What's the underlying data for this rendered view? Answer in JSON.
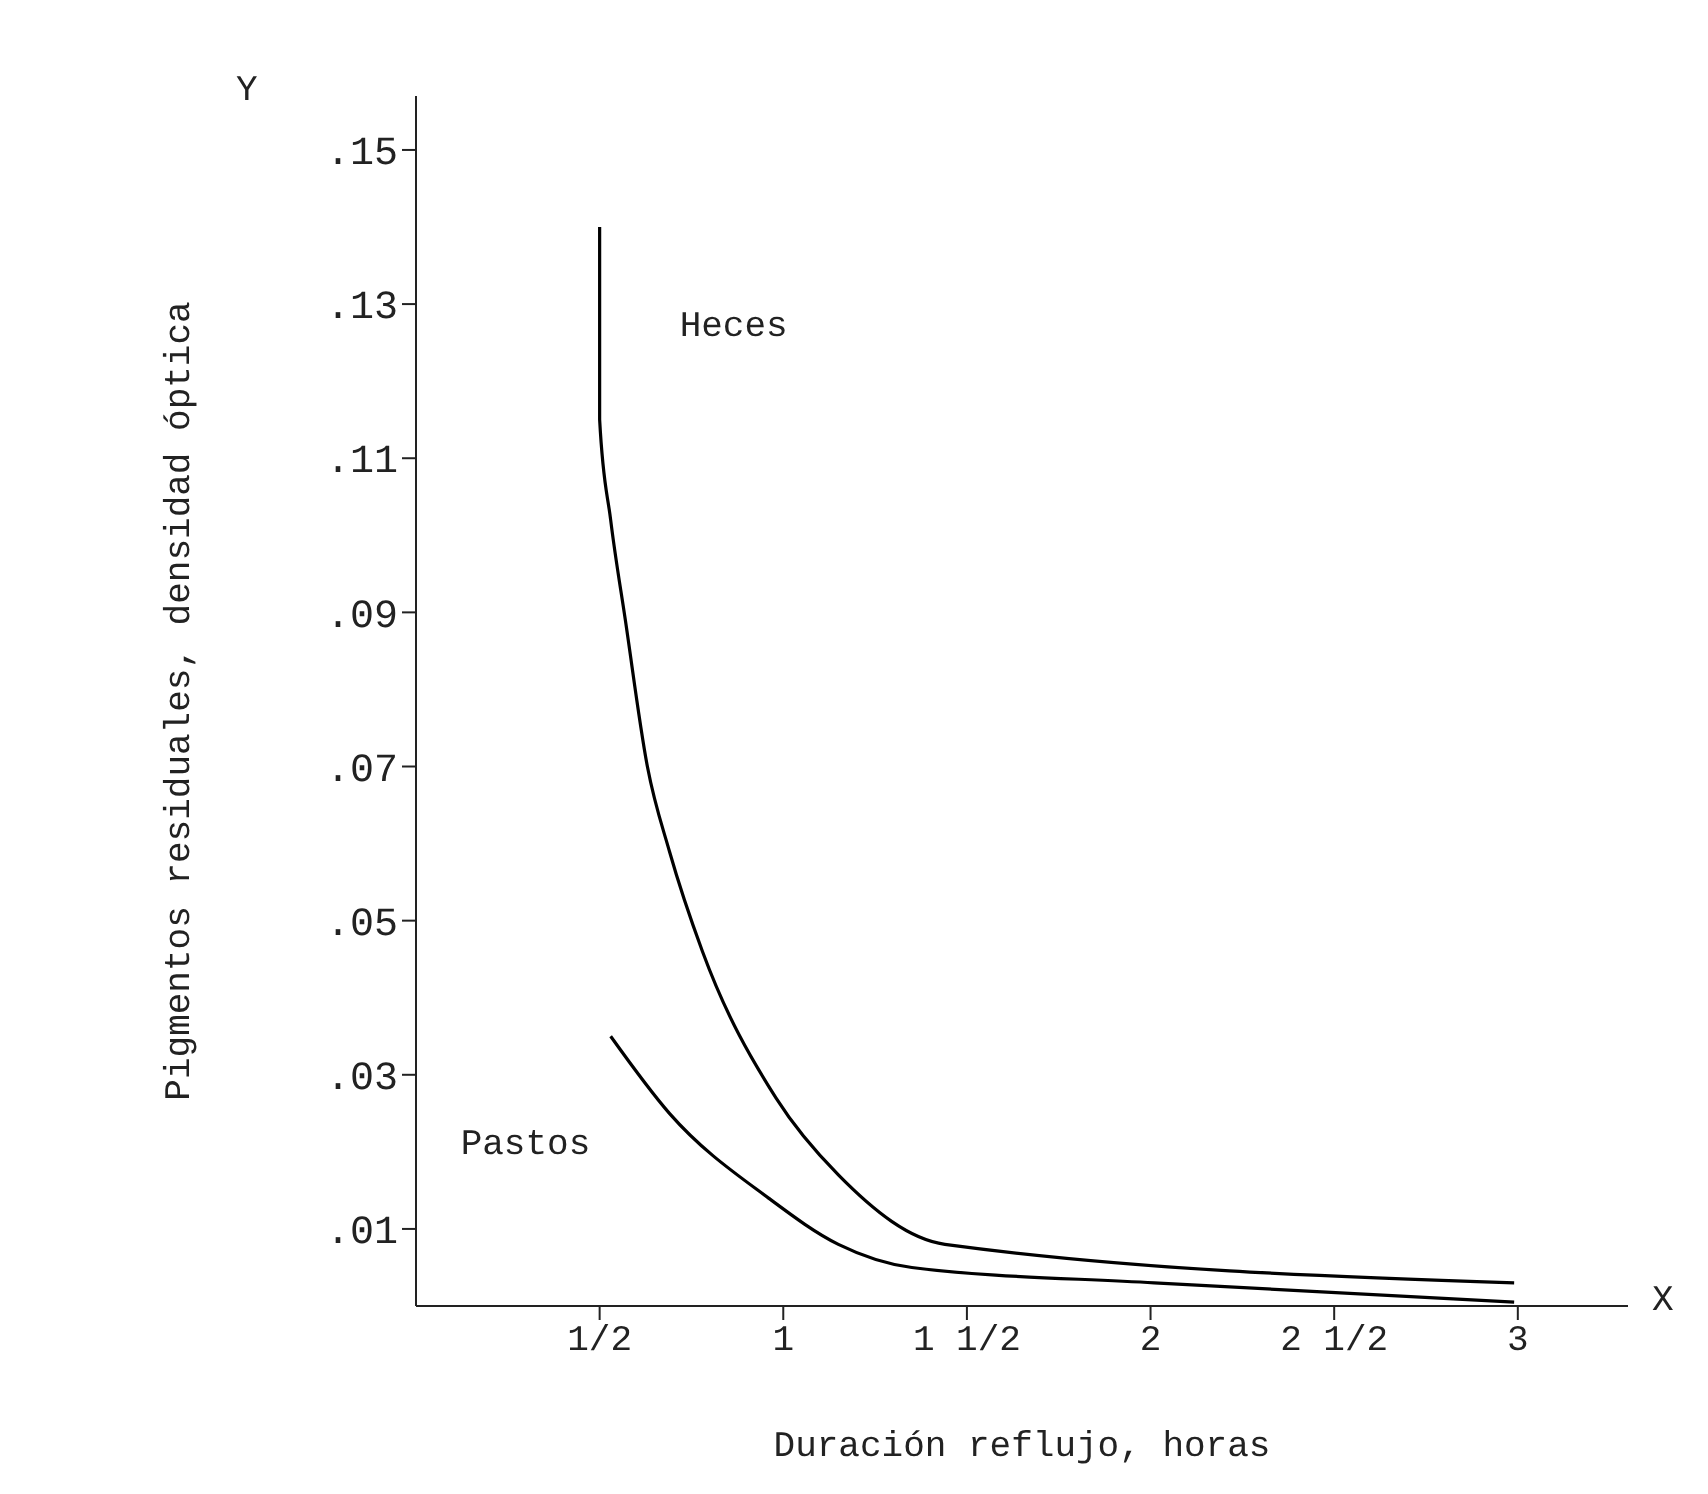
{
  "chart_data": {
    "type": "line",
    "xlabel": "Duración reflujo, horas",
    "ylabel": "Pigmentos residuales, densidad óptica",
    "annotations": [
      "Y",
      "X"
    ],
    "xlim": [
      0,
      3.3
    ],
    "xticks": [
      {
        "value": 0.5,
        "label": "1/2"
      },
      {
        "value": 1,
        "label": "1"
      },
      {
        "value": 1.5,
        "label": "1 1/2"
      },
      {
        "value": 2,
        "label": "2"
      },
      {
        "value": 2.5,
        "label": "2 1/2"
      },
      {
        "value": 3,
        "label": "3"
      }
    ],
    "ylim": [
      0,
      0.157
    ],
    "yticks": [
      {
        "value": 0.01,
        "label": ".01"
      },
      {
        "value": 0.03,
        "label": ".03"
      },
      {
        "value": 0.05,
        "label": ".05"
      },
      {
        "value": 0.07,
        "label": ".07"
      },
      {
        "value": 0.09,
        "label": ".09"
      },
      {
        "value": 0.11,
        "label": ".11"
      },
      {
        "value": 0.13,
        "label": ".13"
      },
      {
        "value": 0.15,
        "label": ".15"
      }
    ],
    "grid": false,
    "legend": false,
    "marker": "none",
    "line_style": "solid",
    "series": [
      {
        "name": "Heces",
        "color": "#000000",
        "x": [
          0.5,
          0.5,
          0.53,
          0.57,
          0.63,
          0.69,
          0.78,
          0.98,
          1.15,
          1.44,
          2.99
        ],
        "values": [
          0.14,
          0.115,
          0.102,
          0.089,
          0.07,
          0.059,
          0.046,
          0.027,
          0.017,
          0.008,
          0.003
        ]
      },
      {
        "name": "Pastos",
        "color": "#000000",
        "x": [
          0.53,
          0.69,
          0.96,
          1.15,
          1.35,
          2.01,
          2.99
        ],
        "values": [
          0.035,
          0.025,
          0.014,
          0.008,
          0.005,
          0.003,
          0.0005
        ]
      }
    ]
  }
}
